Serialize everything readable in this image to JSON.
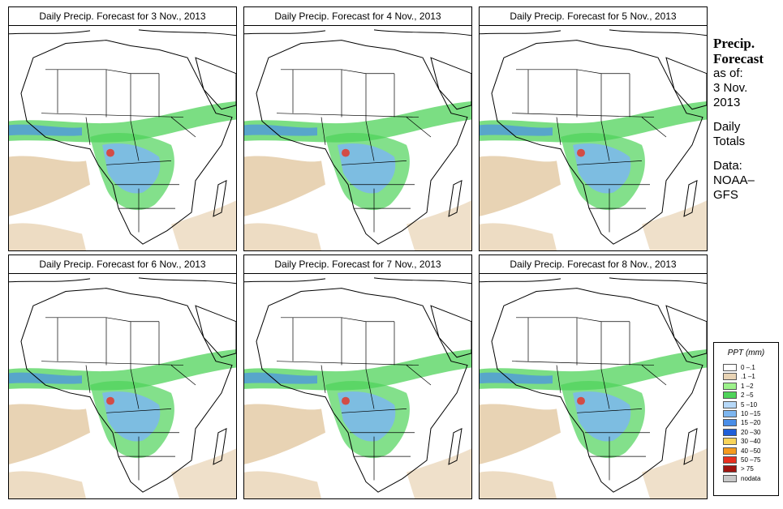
{
  "panels": [
    {
      "title": "Daily Precip. Forecast for  3 Nov., 2013"
    },
    {
      "title": "Daily Precip. Forecast for  4 Nov., 2013"
    },
    {
      "title": "Daily Precip. Forecast for  5 Nov., 2013"
    },
    {
      "title": "Daily Precip. Forecast for  6 Nov., 2013"
    },
    {
      "title": "Daily Precip. Forecast for  7 Nov., 2013"
    },
    {
      "title": "Daily Precip. Forecast for  8 Nov., 2013"
    }
  ],
  "sidebar": {
    "heading1": "Precip.",
    "heading2": "Forecast",
    "asof1": "as of:",
    "asof2": "3 Nov.",
    "asof3": "2013",
    "daily1": "Daily",
    "daily2": "Totals",
    "data1": "Data:",
    "data2": "NOAA–",
    "data3": "GFS"
  },
  "legend": {
    "title": "PPT (mm)",
    "items": [
      {
        "label": "0 –.1",
        "color": "#ffffff"
      },
      {
        "label": ".1 –1",
        "color": "#e8d3b4"
      },
      {
        "label": "1 –2",
        "color": "#9cf28a"
      },
      {
        "label": "2 –5",
        "color": "#4fd35a"
      },
      {
        "label": "5 –10",
        "color": "#b6d8f8"
      },
      {
        "label": "10 –15",
        "color": "#7db6f0"
      },
      {
        "label": "15 –20",
        "color": "#4a8ee8"
      },
      {
        "label": "20 –30",
        "color": "#1f5fd8"
      },
      {
        "label": "30 –40",
        "color": "#f8d45a"
      },
      {
        "label": "40 –50",
        "color": "#f59a1f"
      },
      {
        "label": "50 –75",
        "color": "#e8301f"
      },
      {
        "label": "> 75",
        "color": "#a01410"
      },
      {
        "label": "nodata",
        "color": "#c8c8c8"
      }
    ]
  }
}
